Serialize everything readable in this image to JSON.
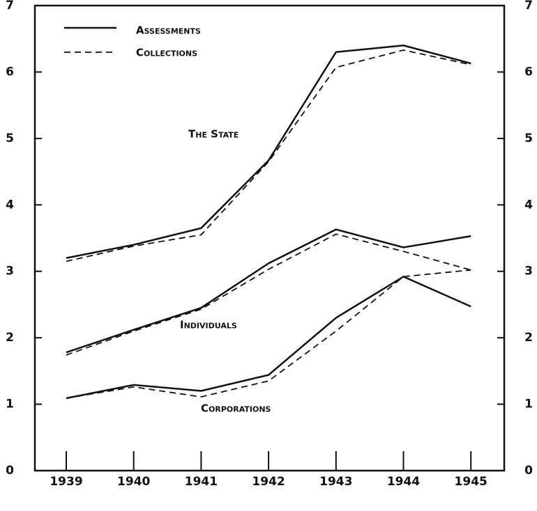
{
  "chart_data": {
    "type": "line",
    "categories": [
      "1939",
      "1940",
      "1941",
      "1942",
      "1943",
      "1944",
      "1945"
    ],
    "ylim": [
      0,
      7
    ],
    "yticks": [
      0,
      1,
      2,
      3,
      4,
      5,
      6,
      7
    ],
    "color": "#111111",
    "legend": [
      {
        "name": "Assessments",
        "dash": "solid"
      },
      {
        "name": "Collections",
        "dash": "dashed"
      }
    ],
    "groups": [
      {
        "label": "The State",
        "assessments": [
          3.2,
          3.4,
          3.65,
          4.67,
          6.3,
          6.4,
          6.13
        ],
        "collections": [
          3.15,
          3.38,
          3.55,
          4.65,
          6.07,
          6.33,
          6.11
        ]
      },
      {
        "label": "Individuals",
        "assessments": [
          1.78,
          2.12,
          2.45,
          3.12,
          3.63,
          3.36,
          3.53
        ],
        "collections": [
          1.74,
          2.1,
          2.43,
          3.03,
          3.56,
          3.3,
          3.02
        ]
      },
      {
        "label": "Corporations",
        "assessments": [
          1.09,
          1.29,
          1.2,
          1.44,
          2.3,
          2.92,
          2.47
        ],
        "collections": [
          1.09,
          1.26,
          1.11,
          1.35,
          2.1,
          2.92,
          3.02
        ]
      }
    ]
  }
}
